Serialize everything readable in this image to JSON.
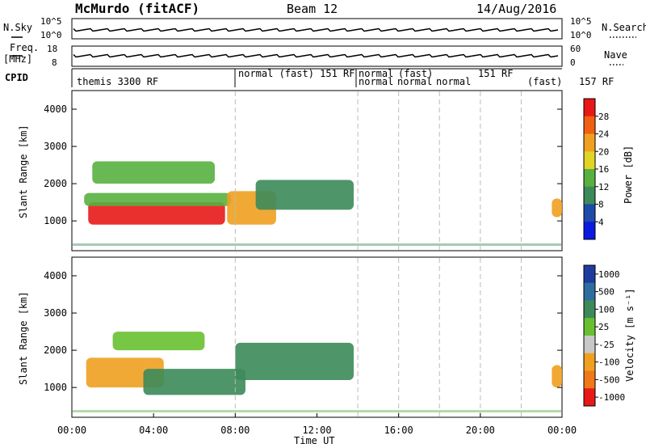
{
  "header": {
    "title": "McMurdo (fitACF)",
    "beam": "Beam 12",
    "date": "14/Aug/2016"
  },
  "nsky": {
    "label": "N.Sky",
    "right_label": "N.Search",
    "ticks": [
      "10^5",
      "10^0"
    ]
  },
  "freq": {
    "label_1": "Freq.",
    "label_2": "[MHz]",
    "ticks_left": [
      "18",
      "8"
    ],
    "right_label": "Nave",
    "ticks_right": [
      "60",
      "0"
    ]
  },
  "cpid": {
    "label": "CPID",
    "segments": [
      "themis 3300 RF",
      "normal (fast) 151 RF",
      "normal",
      "(fast)",
      "151",
      "RF",
      "normal",
      "normal",
      "normal",
      "(fast)",
      "157 RF"
    ]
  },
  "chart_data": [
    {
      "type": "heatmap",
      "name": "power",
      "xlabel": "Time UT",
      "ylabel": "Slant Range [km]",
      "x_ticks": [
        "00:00",
        "04:00",
        "08:00",
        "12:00",
        "16:00",
        "20:00",
        "00:00"
      ],
      "x_range_hours": [
        0,
        24
      ],
      "y_ticks": [
        1000,
        2000,
        3000,
        4000
      ],
      "ylim": [
        200,
        4500
      ],
      "colorbar_label": "Power [dB]",
      "colorbar_ticks": [
        4,
        8,
        12,
        16,
        20,
        24,
        28
      ],
      "colorbar_colors": [
        "#0a1ae0",
        "#1e4aa8",
        "#3c8a5a",
        "#58b040",
        "#e2d422",
        "#f0a020",
        "#f06010",
        "#e81818"
      ],
      "grid_vertical_lines_hours": [
        8,
        14,
        16,
        18,
        20,
        22
      ],
      "grid": "vertical-dashed",
      "regions": [
        {
          "hour_start": 0.8,
          "hour_end": 7.5,
          "range_start": 900,
          "range_end": 1500,
          "value": 28
        },
        {
          "hour_start": 0.6,
          "hour_end": 7.8,
          "range_start": 1400,
          "range_end": 1750,
          "value": 12
        },
        {
          "hour_start": 7.6,
          "hour_end": 10.0,
          "range_start": 900,
          "range_end": 1800,
          "value": 20
        },
        {
          "hour_start": 9.0,
          "hour_end": 13.8,
          "range_start": 1300,
          "range_end": 2100,
          "value": 8
        },
        {
          "hour_start": 1.0,
          "hour_end": 7.0,
          "range_start": 2000,
          "range_end": 2600,
          "value": 12
        },
        {
          "hour_start": 23.5,
          "hour_end": 24.0,
          "range_start": 1100,
          "range_end": 1600,
          "value": 20
        }
      ]
    },
    {
      "type": "heatmap",
      "name": "velocity",
      "xlabel": "Time UT",
      "ylabel": "Slant Range [km]",
      "x_ticks": [
        "00:00",
        "04:00",
        "08:00",
        "12:00",
        "16:00",
        "20:00",
        "00:00"
      ],
      "x_range_hours": [
        0,
        24
      ],
      "y_ticks": [
        1000,
        2000,
        3000,
        4000
      ],
      "ylim": [
        200,
        4500
      ],
      "colorbar_label": "Velocity [m s⁻¹]",
      "colorbar_ticks": [
        "1000",
        "500",
        "100",
        "25",
        "-25",
        "-100",
        "-500",
        "-1000"
      ],
      "colorbar_colors": [
        "#1e3ca0",
        "#2e6e9e",
        "#3c8a5a",
        "#68c030",
        "#c8c8c8",
        "#f0a020",
        "#f07818",
        "#e81818"
      ],
      "grid_vertical_lines_hours": [
        8,
        14,
        16,
        18,
        20,
        22
      ],
      "grid": "vertical-dashed",
      "regions": [
        {
          "hour_start": 0.7,
          "hour_end": 4.5,
          "range_start": 1000,
          "range_end": 1800,
          "value": -100
        },
        {
          "hour_start": 3.5,
          "hour_end": 8.5,
          "range_start": 800,
          "range_end": 1500,
          "value": 100
        },
        {
          "hour_start": 8.0,
          "hour_end": 13.8,
          "range_start": 1200,
          "range_end": 2200,
          "value": 100
        },
        {
          "hour_start": 2.0,
          "hour_end": 6.5,
          "range_start": 2000,
          "range_end": 2500,
          "value": 25
        },
        {
          "hour_start": 23.5,
          "hour_end": 24.0,
          "range_start": 1000,
          "range_end": 1600,
          "value": -100
        }
      ]
    }
  ]
}
